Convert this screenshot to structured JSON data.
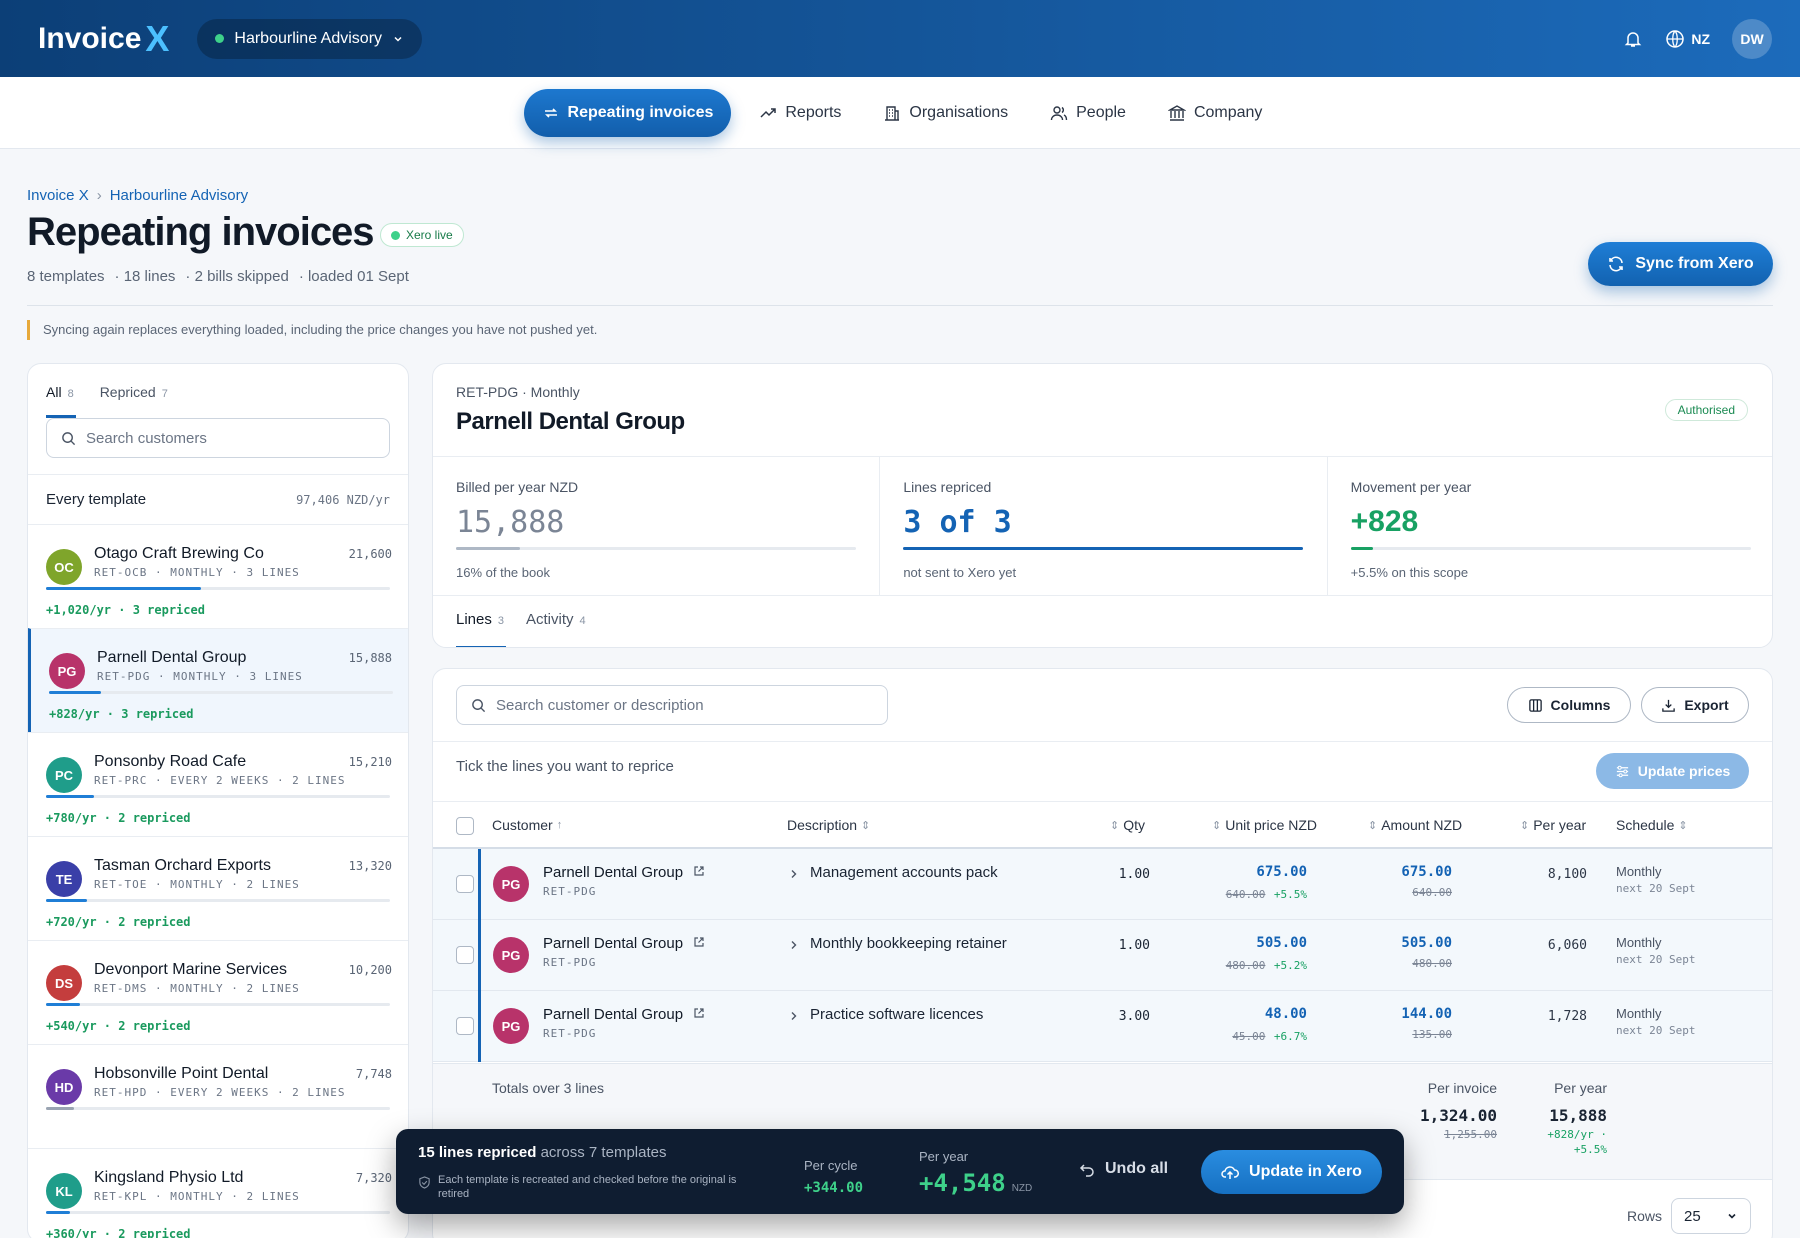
{
  "app": {
    "logo_text": "Invoice",
    "logo_mark": "X",
    "org": "Harbourline Advisory",
    "lang": "NZ",
    "user_initials": "DW"
  },
  "nav": {
    "items": [
      "Repeating invoices",
      "Reports",
      "Organisations",
      "People",
      "Company"
    ]
  },
  "breadcrumb": [
    "Invoice X",
    "Harbourline Advisory"
  ],
  "page": {
    "title": "Repeating invoices",
    "badge": "Xero live",
    "meta": [
      "8 templates",
      "· 18 lines",
      "· 2 bills skipped",
      "· loaded 01 Sept"
    ],
    "sync_label": "Sync from Xero",
    "notice": "Syncing again replaces everything loaded, including the price changes you have not pushed yet."
  },
  "sidebar": {
    "tabs": [
      {
        "label": "All",
        "count": "8"
      },
      {
        "label": "Repriced",
        "count": "7"
      }
    ],
    "search_placeholder": "Search customers",
    "every_label": "Every template",
    "every_value": "97,406 NZD/yr",
    "customers": [
      {
        "initials": "OC",
        "color": "#7fa52b",
        "name": "Otago Craft Brewing Co",
        "meta": "RET-OCB · MONTHLY · 3 LINES",
        "value": "21,600",
        "fill": 0.45,
        "repriced": "+1,020/yr · 3 repriced"
      },
      {
        "initials": "PG",
        "color": "#b8336a",
        "name": "Parnell Dental Group",
        "meta": "RET-PDG · MONTHLY · 3 LINES",
        "value": "15,888",
        "fill": 0.15,
        "repriced": "+828/yr · 3 repriced"
      },
      {
        "initials": "PC",
        "color": "#1f9d8a",
        "name": "Ponsonby Road Cafe",
        "meta": "RET-PRC · EVERY 2 WEEKS · 2 LINES",
        "value": "15,210",
        "fill": 0.14,
        "repriced": "+780/yr · 2 repriced"
      },
      {
        "initials": "TE",
        "color": "#3a3fa8",
        "name": "Tasman Orchard Exports",
        "meta": "RET-TOE · MONTHLY · 2 LINES",
        "value": "13,320",
        "fill": 0.12,
        "repriced": "+720/yr · 2 repriced"
      },
      {
        "initials": "DS",
        "color": "#c43d3d",
        "name": "Devonport Marine Services",
        "meta": "RET-DMS · MONTHLY · 2 LINES",
        "value": "10,200",
        "fill": 0.1,
        "repriced": "+540/yr · 2 repriced"
      },
      {
        "initials": "HD",
        "color": "#6a3aa8",
        "name": "Hobsonville Point Dental",
        "meta": "RET-HPD · EVERY 2 WEEKS · 2 LINES",
        "value": "7,748",
        "fill": 0.08,
        "repriced": ""
      },
      {
        "initials": "KL",
        "color": "#1f9d8a",
        "name": "Kingsland Physio Ltd",
        "meta": "RET-KPL · MONTHLY · 2 LINES",
        "value": "7,320",
        "fill": 0.07,
        "repriced": "+360/yr · 2 repriced"
      }
    ]
  },
  "summary": {
    "code": "RET-PDG · Monthly",
    "name": "Parnell Dental Group",
    "status": "Authorised",
    "kpis": [
      {
        "label": "Billed per year NZD",
        "value": "15,888",
        "sub": "16% of the book",
        "fill": 0.16,
        "color": "#aeb8c5"
      },
      {
        "label": "Lines repriced",
        "value": "3 of 3",
        "sub": "not sent to Xero yet",
        "fill": 1.0,
        "color": "#1463b4"
      },
      {
        "label": "Movement per year",
        "value": "+828",
        "sub": "+5.5% on this scope",
        "fill": 0.055,
        "color": "#18a163"
      }
    ],
    "tabs": [
      {
        "label": "Lines",
        "count": "3"
      },
      {
        "label": "Activity",
        "count": "4"
      }
    ]
  },
  "lines": {
    "search_placeholder": "Search customer or description",
    "columns_label": "Columns",
    "export_label": "Export",
    "tick_text": "Tick the lines you want to reprice",
    "update_label": "Update prices",
    "headers": [
      "Customer",
      "Description",
      "Qty",
      "Unit price NZD",
      "Amount NZD",
      "Per year",
      "Schedule"
    ],
    "rows": [
      {
        "initials": "PG",
        "customer": "Parnell Dental Group",
        "code": "RET-PDG",
        "desc": "Management accounts pack",
        "qty": "1.00",
        "unit": "675.00",
        "unit_old": "640.00",
        "unit_pct": "+5.5%",
        "amount": "675.00",
        "amount_old": "640.00",
        "per_year": "8,100",
        "sched": "Monthly",
        "next": "next 20 Sept"
      },
      {
        "initials": "PG",
        "customer": "Parnell Dental Group",
        "code": "RET-PDG",
        "desc": "Monthly bookkeeping retainer",
        "qty": "1.00",
        "unit": "505.00",
        "unit_old": "480.00",
        "unit_pct": "+5.2%",
        "amount": "505.00",
        "amount_old": "480.00",
        "per_year": "6,060",
        "sched": "Monthly",
        "next": "next 20 Sept"
      },
      {
        "initials": "PG",
        "customer": "Parnell Dental Group",
        "code": "RET-PDG",
        "desc": "Practice software licences",
        "qty": "3.00",
        "unit": "48.00",
        "unit_old": "45.00",
        "unit_pct": "+6.7%",
        "amount": "144.00",
        "amount_old": "135.00",
        "per_year": "1,728",
        "sched": "Monthly",
        "next": "next 20 Sept"
      }
    ],
    "totals": {
      "label": "Totals over 3 lines",
      "inv_label": "Per invoice",
      "inv": "1,324.00",
      "inv_old": "1,255.00",
      "yr_label": "Per year",
      "yr": "15,888",
      "yr_delta": "+828/yr ·",
      "yr_pct": "+5.5%"
    },
    "rows_label": "Rows",
    "rows_value": "25"
  },
  "floatbar": {
    "lines": "15 lines repriced",
    "across": "across 7 templates",
    "note": "Each template is recreated and checked before the original is retired",
    "cycle_label": "Per cycle",
    "cycle": "+344.00",
    "year_label": "Per year",
    "year": "+4,548",
    "year_unit": "NZD",
    "undo": "Undo all",
    "update": "Update in Xero"
  }
}
